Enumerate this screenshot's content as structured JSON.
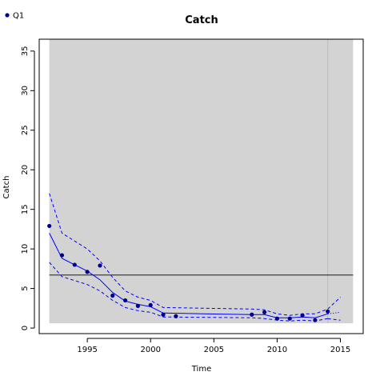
{
  "chart_data": {
    "type": "line",
    "title": "Catch",
    "xlabel": "Time",
    "ylabel": "Catch",
    "xlim": [
      1991.2,
      2016.8
    ],
    "ylim": [
      -0.7,
      36.5
    ],
    "xticks": [
      1995,
      2000,
      2005,
      2010,
      2015
    ],
    "yticks": [
      0,
      5,
      10,
      15,
      20,
      25,
      30,
      35
    ],
    "shaded_region": {
      "x": [
        1992,
        2016
      ],
      "y": [
        0.6,
        36.5
      ],
      "color": "#d3d3d3"
    },
    "vertical_line": {
      "x": 2014,
      "color": "#bebebe"
    },
    "reference_line": {
      "y": 6.7,
      "color": "#000000"
    },
    "legend": {
      "position": "top-left",
      "entries": [
        {
          "label": "Q1",
          "color": "#00008b"
        }
      ]
    },
    "series": [
      {
        "name": "Q1",
        "role": "observed",
        "style": "points",
        "color": "#00008b",
        "x": [
          1992,
          1993,
          1994,
          1995,
          1996,
          1997,
          1998,
          1999,
          2000,
          2001,
          2002,
          2008,
          2009,
          2010,
          2011,
          2012,
          2013,
          2014
        ],
        "y": [
          12.9,
          9.2,
          8.0,
          7.1,
          7.9,
          4.1,
          3.5,
          2.8,
          2.9,
          1.7,
          1.5,
          1.7,
          2.0,
          1.2,
          1.2,
          1.6,
          1.0,
          2.1
        ]
      },
      {
        "role": "fit",
        "style": "solid",
        "color": "#0000ff",
        "x": [
          1992,
          1993,
          1994,
          1995,
          1996,
          1997,
          1998,
          1999,
          2000,
          2001,
          2008,
          2009,
          2010,
          2011,
          2012,
          2013,
          2014
        ],
        "y": [
          12.0,
          8.8,
          8.0,
          7.2,
          6.1,
          4.5,
          3.4,
          3.0,
          2.7,
          1.9,
          1.7,
          1.7,
          1.3,
          1.3,
          1.4,
          1.3,
          1.8
        ]
      },
      {
        "role": "upper",
        "style": "dashed",
        "color": "#0000ff",
        "x": [
          1992,
          1993,
          1994,
          1995,
          1996,
          1997,
          1998,
          1999,
          2000,
          2001,
          2008,
          2009,
          2010,
          2011,
          2012,
          2013,
          2014
        ],
        "y": [
          17.0,
          12.0,
          11.0,
          10.0,
          8.5,
          6.4,
          4.7,
          3.9,
          3.5,
          2.6,
          2.4,
          2.3,
          1.8,
          1.6,
          1.8,
          1.8,
          2.4
        ]
      },
      {
        "role": "lower",
        "style": "dashed",
        "color": "#0000ff",
        "x": [
          1992,
          1993,
          1994,
          1995,
          1996,
          1997,
          1998,
          1999,
          2000,
          2001,
          2008,
          2009,
          2010,
          2011,
          2012,
          2013,
          2014
        ],
        "y": [
          8.3,
          6.5,
          6.0,
          5.5,
          4.7,
          3.5,
          2.6,
          2.2,
          2.0,
          1.4,
          1.3,
          1.2,
          1.0,
          0.9,
          1.0,
          0.9,
          1.2
        ]
      },
      {
        "role": "forecast",
        "style": "dotted",
        "color": "#0000ff",
        "x": [
          2014,
          2015
        ],
        "y": [
          1.8,
          2.0
        ]
      },
      {
        "role": "forecast-upper",
        "style": "dashed",
        "color": "#0000ff",
        "x": [
          2014,
          2015
        ],
        "y": [
          2.4,
          3.9
        ]
      },
      {
        "role": "forecast-lower",
        "style": "dashed",
        "color": "#0000ff",
        "x": [
          2014,
          2015
        ],
        "y": [
          1.2,
          1.0
        ]
      }
    ]
  }
}
